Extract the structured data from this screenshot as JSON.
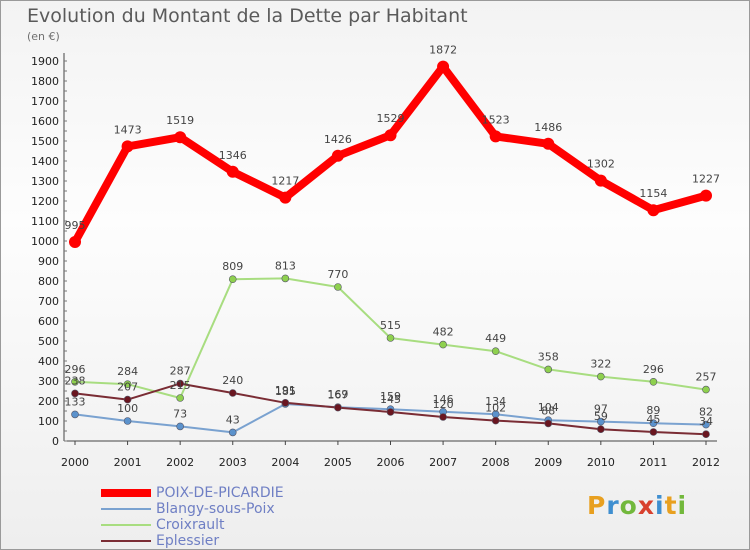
{
  "title": "Evolution du Montant de la Dette par Habitant",
  "subtitle": "(en €)",
  "logo": "Proxiti",
  "chart_data": {
    "type": "line",
    "x": [
      2000,
      2001,
      2002,
      2003,
      2004,
      2005,
      2006,
      2007,
      2008,
      2009,
      2010,
      2011,
      2012
    ],
    "ylim": [
      0,
      1900
    ],
    "yticks": [
      0,
      100,
      200,
      300,
      400,
      500,
      600,
      700,
      800,
      900,
      1000,
      1100,
      1200,
      1300,
      1400,
      1500,
      1600,
      1700,
      1800,
      1900
    ],
    "grid": false,
    "legend_position": "bottom-left",
    "series": [
      {
        "name": "POIX-DE-PICARDIE",
        "color": "#ff0000",
        "marker": "#ff0000",
        "width": 8,
        "values": [
          995,
          1473,
          1519,
          1346,
          1217,
          1426,
          1529,
          1872,
          1523,
          1486,
          1302,
          1154,
          1227
        ],
        "labels": [
          "995",
          "1473",
          "1519",
          "1346",
          "1217",
          "1426",
          "1529",
          "1872",
          "1523",
          "1486",
          "1302",
          "1154",
          "1227"
        ]
      },
      {
        "name": "Blangy-sous-Poix",
        "color": "#7aa2d0",
        "marker": "#5b92cc",
        "width": 2,
        "values": [
          133,
          100,
          73,
          43,
          185,
          169,
          159,
          146,
          134,
          104,
          97,
          89,
          82
        ],
        "labels": [
          "133",
          "100",
          "73",
          "43",
          "185",
          "169",
          "159",
          "146",
          "134",
          "104",
          "97",
          "89",
          "82"
        ]
      },
      {
        "name": "Croixrault",
        "color": "#a8dd80",
        "marker": "#8ed04e",
        "width": 2,
        "values": [
          296,
          284,
          215,
          809,
          813,
          770,
          515,
          482,
          449,
          358,
          322,
          296,
          257
        ],
        "labels": [
          "296",
          "284",
          "215",
          "809",
          "813",
          "770",
          "515",
          "482",
          "449",
          "358",
          "322",
          "296",
          "257"
        ]
      },
      {
        "name": "Eplessier",
        "color": "#7a2c34",
        "marker": "#6a1620",
        "width": 2,
        "values": [
          238,
          207,
          287,
          240,
          191,
          167,
          145,
          120,
          102,
          88,
          59,
          45,
          34
        ],
        "labels": [
          "238",
          "207",
          "287",
          "240",
          "191",
          "167",
          "145",
          "120",
          "102",
          "88",
          "59",
          "45",
          "34"
        ]
      }
    ]
  }
}
